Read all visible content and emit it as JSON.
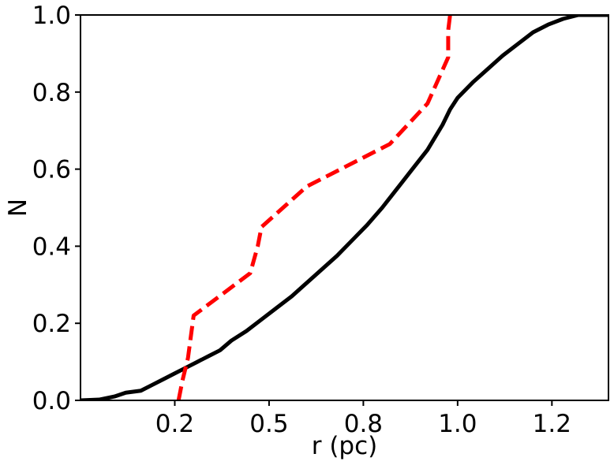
{
  "chart_data": {
    "type": "line",
    "title": "",
    "xlabel": "r (pc)",
    "ylabel": "N",
    "xlim": [
      0.0,
      1.4
    ],
    "ylim": [
      0.0,
      1.0
    ],
    "x_ticks": [
      0.25,
      0.5,
      0.75,
      1.0,
      1.25
    ],
    "x_tick_labels": [
      "0.2",
      "0.5",
      "0.8",
      "1.0",
      "1.2"
    ],
    "y_ticks": [
      0.0,
      0.2,
      0.4,
      0.6,
      0.8,
      1.0
    ],
    "y_tick_labels": [
      "0.0",
      "0.2",
      "0.4",
      "0.6",
      "0.8",
      "1.0"
    ],
    "grid": false,
    "legend": false,
    "series": [
      {
        "color": "#000000",
        "style": "solid",
        "x": [
          0.0,
          0.05,
          0.09,
          0.12,
          0.16,
          0.19,
          0.22,
          0.25,
          0.28,
          0.31,
          0.34,
          0.37,
          0.4,
          0.44,
          0.48,
          0.52,
          0.56,
          0.6,
          0.64,
          0.68,
          0.72,
          0.76,
          0.8,
          0.84,
          0.88,
          0.92,
          0.96,
          0.98,
          1.0,
          1.04,
          1.08,
          1.12,
          1.16,
          1.2,
          1.24,
          1.28,
          1.32,
          1.36,
          1.4
        ],
        "y": [
          0.0,
          0.002,
          0.01,
          0.02,
          0.025,
          0.04,
          0.055,
          0.07,
          0.085,
          0.1,
          0.115,
          0.13,
          0.155,
          0.18,
          0.21,
          0.24,
          0.27,
          0.305,
          0.34,
          0.375,
          0.415,
          0.455,
          0.5,
          0.55,
          0.6,
          0.65,
          0.715,
          0.755,
          0.785,
          0.825,
          0.86,
          0.895,
          0.925,
          0.955,
          0.975,
          0.99,
          1.0,
          1.0,
          1.0
        ]
      },
      {
        "color": "#ff0000",
        "style": "dashed",
        "x": [
          0.26,
          0.27,
          0.285,
          0.3,
          0.45,
          0.47,
          0.48,
          0.6,
          0.82,
          0.92,
          0.975,
          0.975,
          0.98
        ],
        "y": [
          0.0,
          0.05,
          0.11,
          0.22,
          0.33,
          0.4,
          0.45,
          0.555,
          0.665,
          0.77,
          0.89,
          0.96,
          1.0
        ]
      }
    ]
  }
}
